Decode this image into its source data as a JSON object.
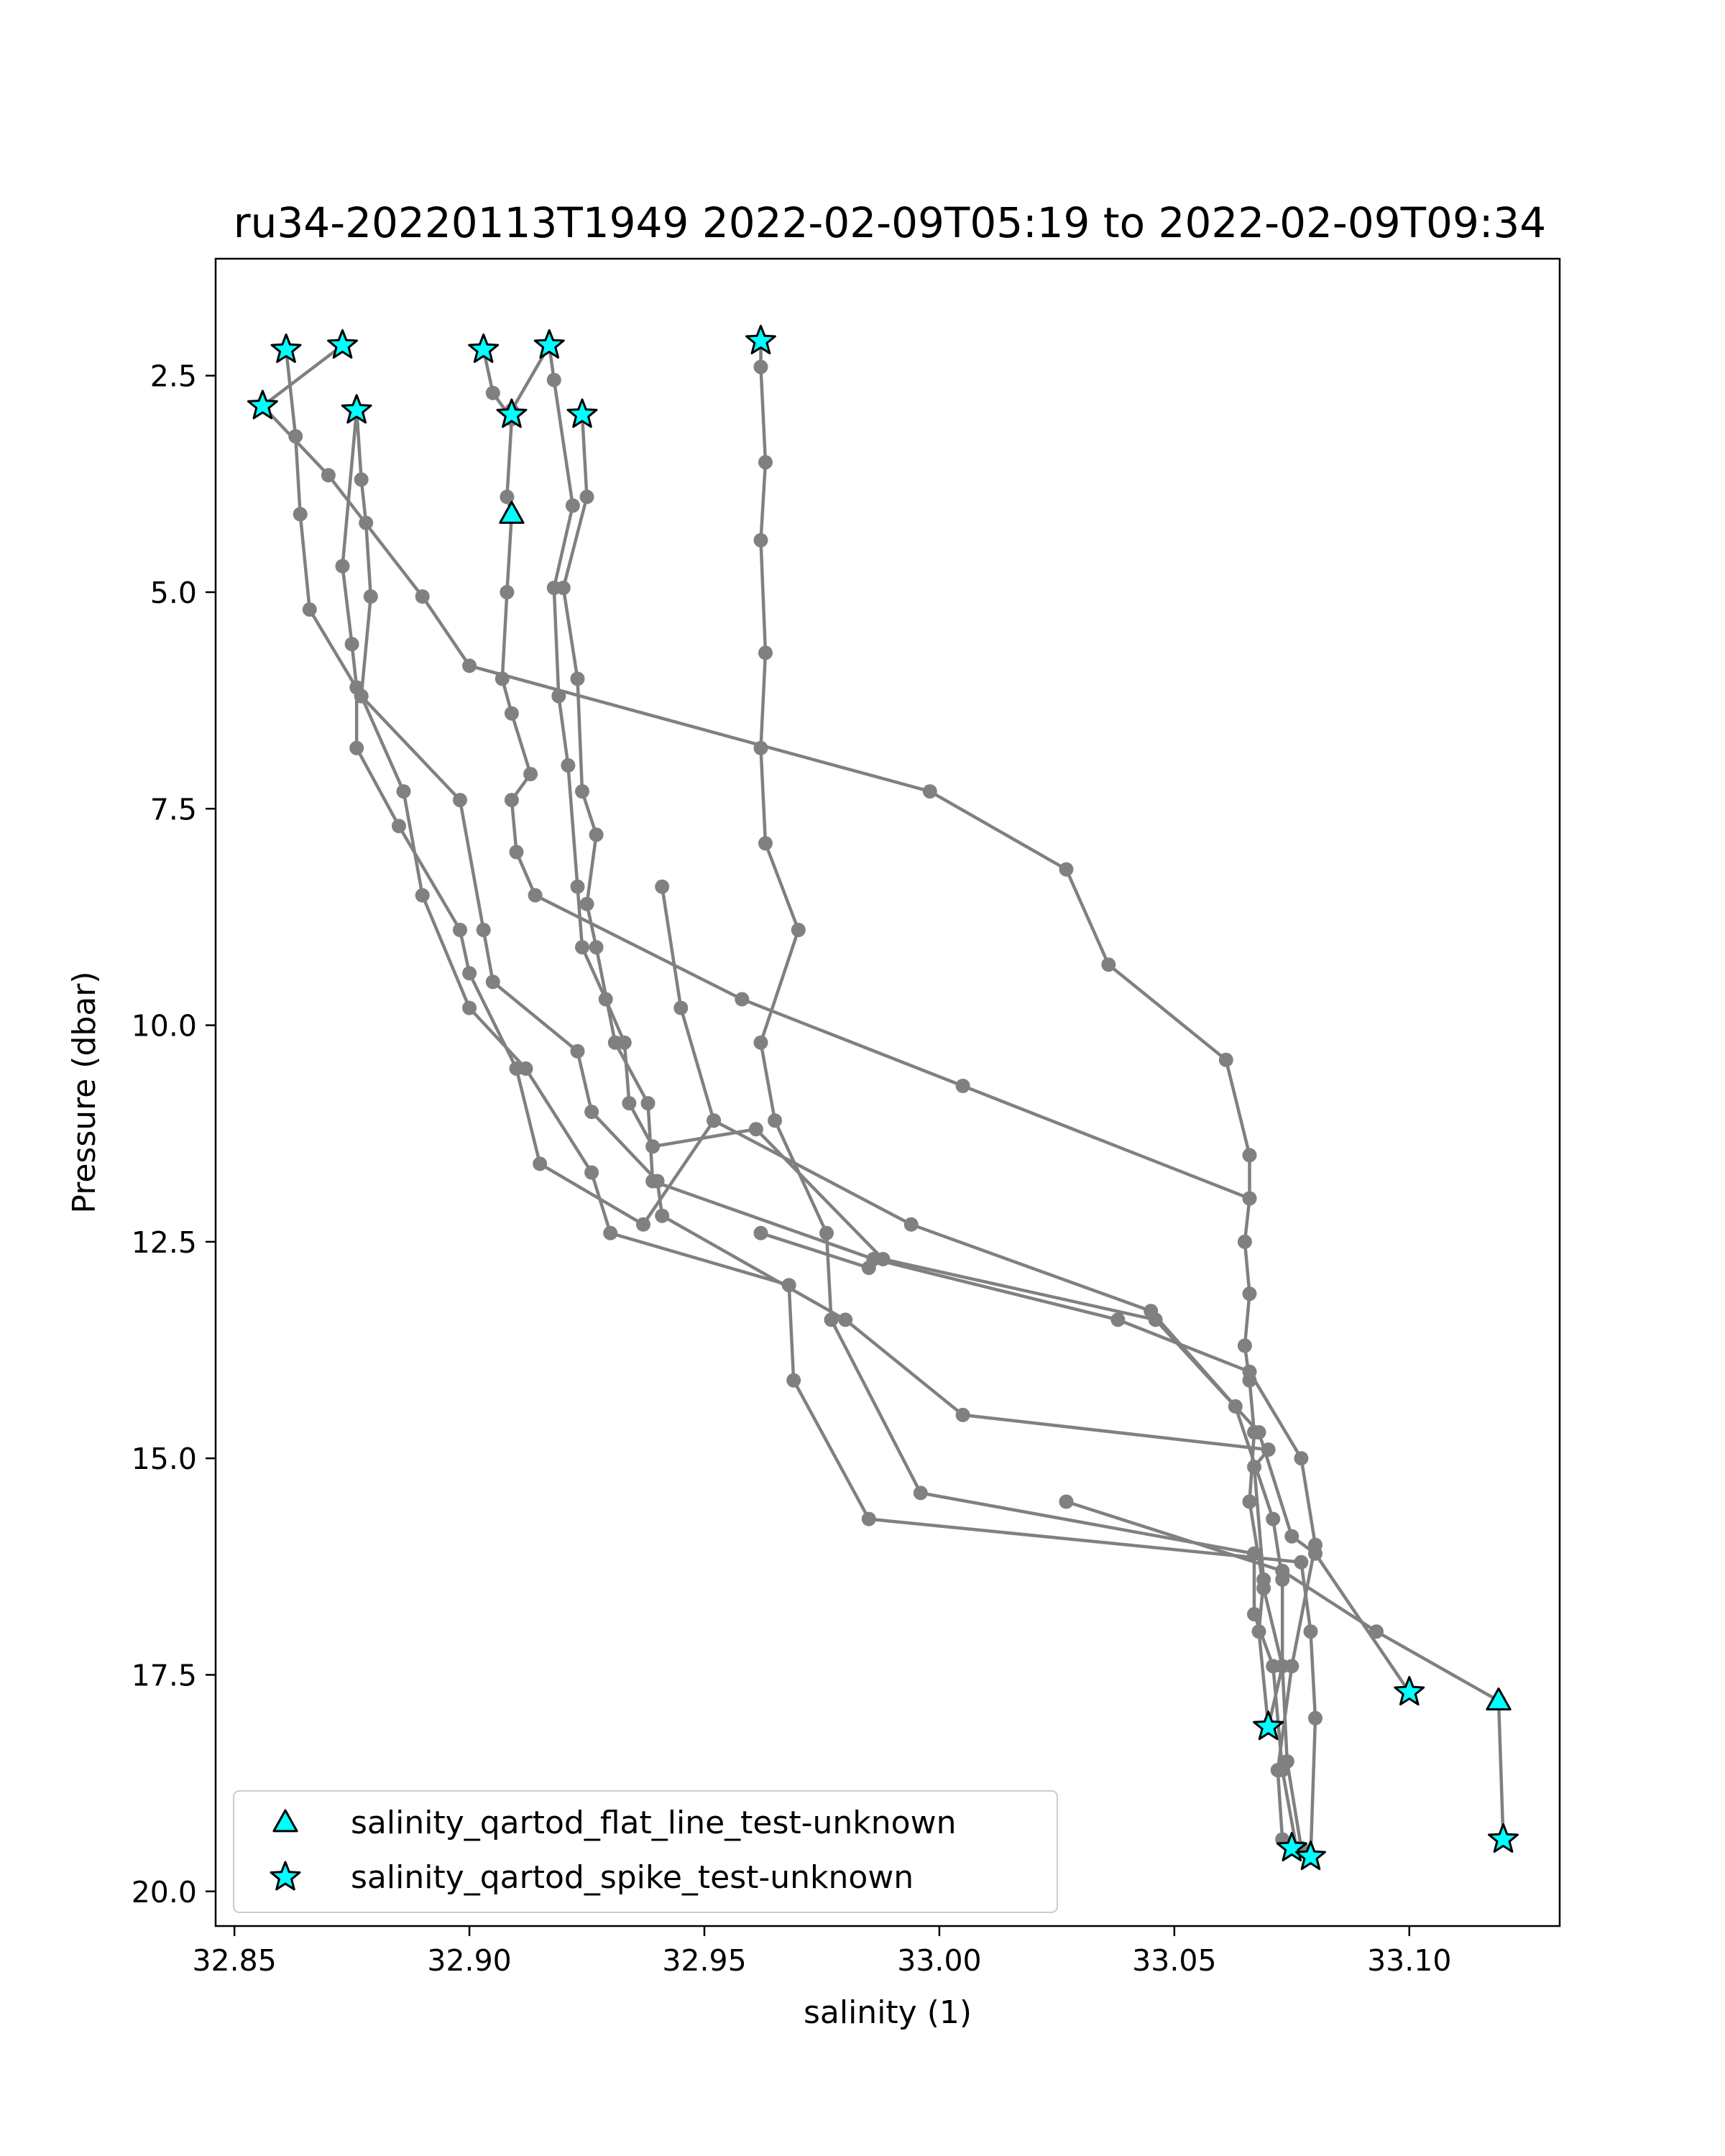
{
  "chart_data": {
    "type": "line",
    "title": "ru34-20220113T1949 2022-02-09T05:19 to 2022-02-09T09:34",
    "xlabel": "salinity (1)",
    "ylabel": "Pressure (dbar)",
    "xlim": [
      32.846,
      33.132
    ],
    "ylim": [
      1.15,
      20.4
    ],
    "y_inverted": true,
    "grid": false,
    "x_ticks": [
      32.85,
      32.9,
      32.95,
      33.0,
      33.05,
      33.1
    ],
    "x_tick_labels": [
      "32.85",
      "32.90",
      "32.95",
      "33.00",
      "33.05",
      "33.10"
    ],
    "y_ticks": [
      2.5,
      5.0,
      7.5,
      10.0,
      12.5,
      15.0,
      17.5,
      20.0
    ],
    "y_tick_labels": [
      "2.5",
      "5.0",
      "7.5",
      "10.0",
      "12.5",
      "15.0",
      "17.5",
      "20.0"
    ],
    "line_color": "#808080",
    "marker_color": "#00ffff",
    "marker_edge_color": "#000000",
    "legend_position": "lower left",
    "legend": [
      {
        "label": "salinity_qartod_flat_line_test-unknown",
        "marker": "triangle"
      },
      {
        "label": "salinity_qartod_spike_test-unknown",
        "marker": "star"
      }
    ],
    "series": [
      {
        "points": [
          [
            32.962,
            2.1
          ],
          [
            32.962,
            2.4
          ],
          [
            32.963,
            3.5
          ],
          [
            32.962,
            4.4
          ],
          [
            32.963,
            5.7
          ],
          [
            32.962,
            6.8
          ],
          [
            32.963,
            7.9
          ],
          [
            32.97,
            8.9
          ],
          [
            32.962,
            10.2
          ],
          [
            32.965,
            11.1
          ],
          [
            32.976,
            12.4
          ],
          [
            32.977,
            13.4
          ],
          [
            32.996,
            15.4
          ],
          [
            33.067,
            16.1
          ],
          [
            33.067,
            16.8
          ],
          [
            33.071,
            17.4
          ],
          [
            33.073,
            18.6
          ],
          [
            33.076,
            19.5
          ]
        ]
      },
      {
        "points": [
          [
            32.861,
            2.2
          ],
          [
            32.863,
            3.2
          ],
          [
            32.864,
            4.1
          ],
          [
            32.866,
            5.2
          ],
          [
            32.877,
            6.2
          ],
          [
            32.886,
            7.3
          ],
          [
            32.89,
            8.5
          ],
          [
            32.9,
            9.8
          ],
          [
            32.912,
            10.5
          ],
          [
            32.926,
            11.7
          ],
          [
            32.93,
            12.4
          ],
          [
            32.968,
            13.0
          ],
          [
            32.969,
            14.1
          ],
          [
            32.985,
            15.7
          ],
          [
            33.077,
            16.2
          ],
          [
            33.079,
            17.0
          ],
          [
            33.08,
            18.0
          ],
          [
            33.079,
            19.6
          ]
        ]
      },
      {
        "points": [
          [
            32.873,
            2.15
          ],
          [
            32.856,
            2.85
          ],
          [
            32.87,
            3.65
          ],
          [
            32.89,
            5.05
          ],
          [
            32.9,
            5.85
          ],
          [
            32.998,
            7.3
          ],
          [
            33.027,
            8.2
          ],
          [
            33.036,
            9.3
          ],
          [
            33.061,
            10.4
          ],
          [
            33.066,
            11.5
          ],
          [
            33.066,
            12.0
          ],
          [
            33.065,
            12.5
          ],
          [
            33.066,
            13.1
          ],
          [
            33.065,
            13.7
          ],
          [
            33.066,
            14.1
          ],
          [
            33.067,
            14.7
          ],
          [
            33.066,
            15.5
          ],
          [
            33.069,
            16.5
          ],
          [
            33.073,
            17.4
          ],
          [
            33.074,
            18.5
          ],
          [
            33.077,
            19.5
          ]
        ]
      },
      {
        "points": [
          [
            32.876,
            2.9
          ],
          [
            32.877,
            3.7
          ],
          [
            32.878,
            4.2
          ],
          [
            32.879,
            5.05
          ],
          [
            32.877,
            6.2
          ],
          [
            32.898,
            7.4
          ],
          [
            32.903,
            8.9
          ],
          [
            32.905,
            9.5
          ],
          [
            32.923,
            10.3
          ],
          [
            32.926,
            11.0
          ],
          [
            32.94,
            11.8
          ],
          [
            32.941,
            12.2
          ],
          [
            32.98,
            13.4
          ],
          [
            33.005,
            14.5
          ],
          [
            33.07,
            14.9
          ],
          [
            33.067,
            15.1
          ],
          [
            33.069,
            16.4
          ],
          [
            33.068,
            17.0
          ],
          [
            33.07,
            18.1
          ]
        ]
      },
      {
        "points": [
          [
            32.876,
            2.9
          ],
          [
            32.873,
            4.7
          ],
          [
            32.875,
            5.6
          ],
          [
            32.876,
            6.1
          ],
          [
            32.876,
            6.8
          ],
          [
            32.885,
            7.7
          ],
          [
            32.898,
            8.9
          ],
          [
            32.9,
            9.4
          ],
          [
            32.91,
            10.5
          ],
          [
            32.915,
            11.6
          ],
          [
            32.937,
            12.3
          ],
          [
            32.952,
            11.1
          ],
          [
            32.994,
            12.3
          ],
          [
            33.045,
            13.3
          ],
          [
            33.063,
            14.4
          ],
          [
            33.071,
            15.7
          ],
          [
            33.073,
            16.4
          ],
          [
            33.073,
            17.4
          ],
          [
            33.07,
            18.1
          ]
        ]
      },
      {
        "points": [
          [
            32.903,
            2.2
          ],
          [
            32.905,
            2.7
          ],
          [
            32.909,
            3.0
          ],
          [
            32.908,
            3.9
          ],
          [
            32.909,
            4.1
          ],
          [
            32.908,
            5.0
          ],
          [
            32.907,
            6.0
          ],
          [
            32.909,
            6.4
          ],
          [
            32.913,
            7.1
          ],
          [
            32.909,
            7.4
          ],
          [
            32.91,
            8.0
          ],
          [
            32.914,
            8.5
          ],
          [
            32.958,
            9.7
          ],
          [
            33.005,
            10.7
          ],
          [
            33.066,
            12.0
          ]
        ]
      },
      {
        "points": [
          [
            32.909,
            2.9
          ],
          [
            32.917,
            2.15
          ],
          [
            32.918,
            2.55
          ],
          [
            32.922,
            4.0
          ],
          [
            32.918,
            4.95
          ],
          [
            32.919,
            6.2
          ],
          [
            32.921,
            7.0
          ],
          [
            32.923,
            8.4
          ],
          [
            32.924,
            9.1
          ],
          [
            32.929,
            9.7
          ],
          [
            32.933,
            10.2
          ],
          [
            32.934,
            10.9
          ],
          [
            32.939,
            11.4
          ],
          [
            32.961,
            11.2
          ],
          [
            32.988,
            12.7
          ],
          [
            33.046,
            13.4
          ],
          [
            33.068,
            14.7
          ],
          [
            33.075,
            15.9
          ],
          [
            33.08,
            16.1
          ],
          [
            33.1,
            17.7
          ]
        ]
      },
      {
        "points": [
          [
            32.924,
            2.95
          ],
          [
            32.925,
            3.9
          ],
          [
            32.92,
            4.95
          ],
          [
            32.923,
            6.0
          ],
          [
            32.924,
            7.3
          ],
          [
            32.927,
            7.8
          ],
          [
            32.925,
            8.6
          ],
          [
            32.927,
            9.1
          ],
          [
            32.931,
            10.2
          ],
          [
            32.938,
            10.9
          ],
          [
            32.939,
            11.8
          ],
          [
            32.986,
            12.7
          ],
          [
            33.038,
            13.4
          ],
          [
            33.066,
            14.0
          ],
          [
            33.077,
            15.0
          ],
          [
            33.08,
            16.0
          ],
          [
            33.075,
            17.4
          ],
          [
            33.072,
            18.6
          ],
          [
            33.073,
            19.4
          ]
        ]
      },
      {
        "points": [
          [
            32.941,
            8.4
          ],
          [
            32.945,
            9.8
          ],
          [
            32.952,
            11.1
          ]
        ]
      },
      {
        "points": [
          [
            32.962,
            12.4
          ],
          [
            32.985,
            12.8
          ]
        ]
      },
      {
        "points": [
          [
            33.027,
            15.5
          ],
          [
            33.073,
            16.3
          ],
          [
            33.093,
            17.0
          ],
          [
            33.119,
            17.8
          ],
          [
            33.12,
            19.4
          ]
        ]
      }
    ],
    "flat_line_flags": [
      [
        32.909,
        4.1
      ],
      [
        33.119,
        17.8
      ]
    ],
    "spike_flags": [
      [
        32.962,
        2.1
      ],
      [
        32.861,
        2.2
      ],
      [
        32.873,
        2.15
      ],
      [
        32.903,
        2.2
      ],
      [
        32.917,
        2.15
      ],
      [
        32.856,
        2.85
      ],
      [
        32.876,
        2.9
      ],
      [
        32.909,
        2.95
      ],
      [
        32.924,
        2.95
      ],
      [
        33.1,
        17.7
      ],
      [
        33.07,
        18.1
      ],
      [
        33.075,
        19.5
      ],
      [
        33.079,
        19.6
      ],
      [
        33.12,
        19.4
      ]
    ]
  }
}
